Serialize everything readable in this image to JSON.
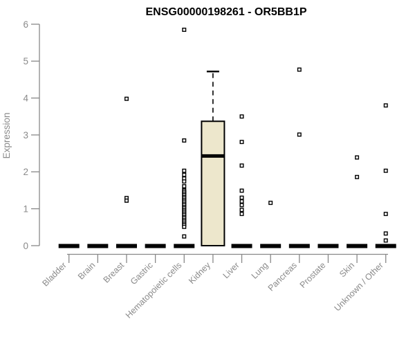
{
  "chart_data": {
    "type": "boxplot",
    "title": "ENSG00000198261 - OR5BB1P",
    "ylabel": "Expression",
    "ylim": [
      0,
      6
    ],
    "yticks": [
      "0",
      "1",
      "2",
      "3",
      "4",
      "5",
      "6"
    ],
    "grid": false,
    "legend": null,
    "colors": {
      "box_fill": "#EDE7CC",
      "axis": "#888888",
      "tick_text": "#8a8a8a",
      "line": "#000000",
      "point_fill": "#ffffff"
    },
    "categories": [
      {
        "label": "Bladder",
        "collapsed_at_zero": true,
        "points": []
      },
      {
        "label": "Brain",
        "collapsed_at_zero": true,
        "points": []
      },
      {
        "label": "Breast",
        "collapsed_at_zero": true,
        "points": [
          3.98,
          1.29,
          1.22
        ]
      },
      {
        "label": "Gastric",
        "collapsed_at_zero": true,
        "points": []
      },
      {
        "label": "Hematopoietic cells",
        "collapsed_at_zero": true,
        "points": [
          5.85,
          2.85,
          2.03,
          1.92,
          1.82,
          1.74,
          1.61,
          1.5,
          1.46,
          1.41,
          1.37,
          1.32,
          1.28,
          1.23,
          1.19,
          1.14,
          1.1,
          1.05,
          1.01,
          0.96,
          0.92,
          0.87,
          0.83,
          0.78,
          0.74,
          0.69,
          0.65,
          0.6,
          0.56,
          0.51,
          0.25
        ]
      },
      {
        "label": "Kidney",
        "collapsed_at_zero": false,
        "points": [],
        "box": {
          "whisker_low": 0,
          "q1": 0,
          "median": 2.43,
          "q3": 3.37,
          "whisker_high": 4.72
        }
      },
      {
        "label": "Liver",
        "collapsed_at_zero": true,
        "points": [
          3.5,
          2.81,
          2.17,
          1.49,
          1.3,
          1.2,
          1.1,
          0.97,
          0.86
        ]
      },
      {
        "label": "Lung",
        "collapsed_at_zero": true,
        "points": [
          1.16
        ]
      },
      {
        "label": "Pancreas",
        "collapsed_at_zero": true,
        "points": [
          4.77,
          3.01
        ]
      },
      {
        "label": "Prostate",
        "collapsed_at_zero": true,
        "points": []
      },
      {
        "label": "Skin",
        "collapsed_at_zero": true,
        "points": [
          2.39,
          1.86
        ]
      },
      {
        "label": "Unknown / Other",
        "collapsed_at_zero": true,
        "points": [
          3.8,
          2.03,
          0.86,
          0.33,
          0.14
        ]
      }
    ]
  }
}
